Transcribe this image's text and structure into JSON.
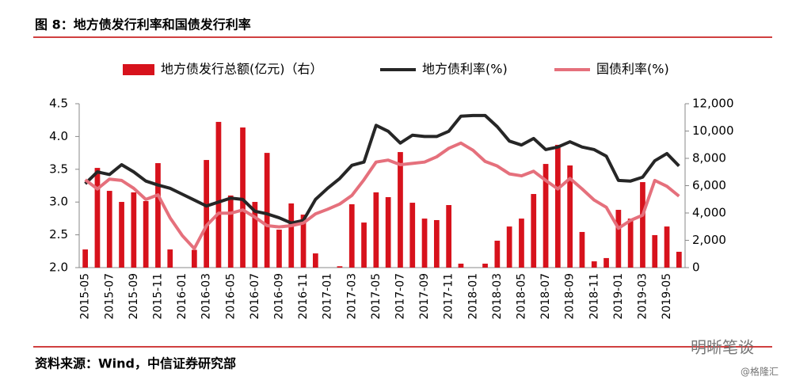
{
  "header": {
    "title": "图 8：地方债发行利率和国债发行利率"
  },
  "footer": {
    "source": "资料来源：Wind，中信证券研究部",
    "watermark": "明晰笔谈",
    "credit": "@格隆汇"
  },
  "chart_data": {
    "type": "bar-line",
    "categories": [
      "2015-05",
      null,
      "2015-07",
      null,
      "2015-09",
      null,
      "2015-11",
      null,
      "2016-01",
      null,
      "2016-03",
      null,
      "2016-05",
      null,
      "2016-07",
      null,
      "2016-09",
      null,
      "2016-11",
      null,
      "2017-01",
      null,
      "2017-03",
      null,
      "2017-05",
      null,
      "2017-07",
      null,
      "2017-09",
      null,
      "2017-11",
      null,
      "2018-01",
      null,
      "2018-03",
      null,
      "2018-05",
      null,
      "2018-07",
      null,
      "2018-09",
      null,
      "2018-11",
      null,
      "2019-01",
      null,
      "2019-03",
      null,
      "2019-05",
      null
    ],
    "series": [
      {
        "name": "地方债发行总额(亿元)（右）",
        "type": "bar",
        "axis": "y2",
        "color": "#d7121c",
        "values": [
          1330,
          7300,
          5620,
          4810,
          5510,
          4870,
          7650,
          1330,
          0,
          1300,
          7880,
          10670,
          5280,
          10260,
          4810,
          8400,
          2780,
          4700,
          3880,
          1040,
          0,
          100,
          4640,
          3300,
          5510,
          5160,
          8460,
          4750,
          3590,
          3480,
          4580,
          290,
          0,
          290,
          1970,
          3010,
          3590,
          5390,
          7590,
          8990,
          7480,
          2610,
          460,
          700,
          4230,
          3590,
          6260,
          2380,
          3010,
          1160
        ]
      },
      {
        "name": "地方债利率(%)",
        "type": "line",
        "color": "#262626",
        "values": [
          3.28,
          3.46,
          3.42,
          3.57,
          3.46,
          3.32,
          3.26,
          3.21,
          3.12,
          3.03,
          2.94,
          3.0,
          3.06,
          3.04,
          2.86,
          2.82,
          2.76,
          2.68,
          2.72,
          3.04,
          3.21,
          3.36,
          3.56,
          3.61,
          4.17,
          4.08,
          3.9,
          4.02,
          4.0,
          4.0,
          4.08,
          4.31,
          4.32,
          4.32,
          4.15,
          3.93,
          3.87,
          3.97,
          3.8,
          3.84,
          3.92,
          3.84,
          3.8,
          3.7,
          3.33,
          3.32,
          3.38,
          3.63,
          3.74,
          3.55
        ]
      },
      {
        "name": "国债利率(%)",
        "type": "line",
        "color": "#e5707c",
        "values": [
          3.34,
          3.2,
          3.35,
          3.33,
          3.21,
          3.04,
          3.11,
          2.76,
          2.49,
          2.29,
          2.64,
          2.83,
          2.83,
          2.88,
          2.77,
          2.64,
          2.62,
          2.64,
          2.68,
          2.82,
          2.89,
          2.97,
          3.1,
          3.34,
          3.61,
          3.64,
          3.57,
          3.59,
          3.61,
          3.69,
          3.82,
          3.9,
          3.79,
          3.62,
          3.55,
          3.43,
          3.4,
          3.47,
          3.33,
          3.2,
          3.36,
          3.2,
          3.03,
          2.92,
          2.6,
          2.72,
          2.8,
          3.33,
          3.24,
          3.09
        ]
      }
    ],
    "ylim": [
      2.0,
      4.5
    ],
    "yticks": [
      {
        "value": 2.0,
        "label": "2.0"
      },
      2.5,
      {
        "value": 3.0,
        "label": "3.0"
      },
      3.5,
      {
        "value": 4.0,
        "label": "4.0"
      },
      4.5
    ],
    "y2lim": [
      0,
      12000
    ],
    "y2ticks": [
      0,
      {
        "value": 2000,
        "label": "2,000"
      },
      {
        "value": 4000,
        "label": "4,000"
      },
      {
        "value": 6000,
        "label": "6,000"
      },
      {
        "value": 8000,
        "label": "8,000"
      },
      {
        "value": 10000,
        "label": "10,000"
      },
      {
        "value": 12000,
        "label": "12,000"
      }
    ],
    "grid": false,
    "legend": "top"
  }
}
